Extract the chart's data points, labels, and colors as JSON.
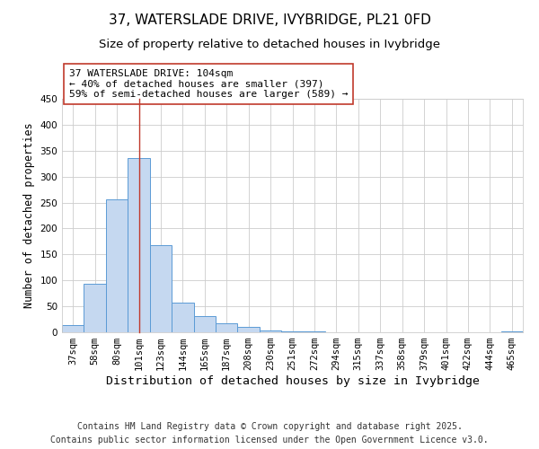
{
  "title": "37, WATERSLADE DRIVE, IVYBRIDGE, PL21 0FD",
  "subtitle": "Size of property relative to detached houses in Ivybridge",
  "xlabel": "Distribution of detached houses by size in Ivybridge",
  "ylabel": "Number of detached properties",
  "bar_color": "#c5d8f0",
  "bar_edge_color": "#5b9bd5",
  "categories": [
    "37sqm",
    "58sqm",
    "80sqm",
    "101sqm",
    "123sqm",
    "144sqm",
    "165sqm",
    "187sqm",
    "208sqm",
    "230sqm",
    "251sqm",
    "272sqm",
    "294sqm",
    "315sqm",
    "337sqm",
    "358sqm",
    "379sqm",
    "401sqm",
    "422sqm",
    "444sqm",
    "465sqm"
  ],
  "values": [
    14,
    94,
    257,
    336,
    168,
    57,
    32,
    18,
    10,
    3,
    2,
    1,
    0,
    0,
    0,
    0,
    0,
    0,
    0,
    0,
    1
  ],
  "ylim": [
    0,
    450
  ],
  "yticks": [
    0,
    50,
    100,
    150,
    200,
    250,
    300,
    350,
    400,
    450
  ],
  "property_line_x": 3,
  "property_line_color": "#c0392b",
  "annotation_line1": "37 WATERSLADE DRIVE: 104sqm",
  "annotation_line2": "← 40% of detached houses are smaller (397)",
  "annotation_line3": "59% of semi-detached houses are larger (589) →",
  "annotation_box_color": "#ffffff",
  "annotation_box_edge_color": "#c0392b",
  "footer_line1": "Contains HM Land Registry data © Crown copyright and database right 2025.",
  "footer_line2": "Contains public sector information licensed under the Open Government Licence v3.0.",
  "background_color": "#ffffff",
  "grid_color": "#cccccc",
  "title_fontsize": 11,
  "subtitle_fontsize": 9.5,
  "xlabel_fontsize": 9.5,
  "ylabel_fontsize": 8.5,
  "tick_fontsize": 7.5,
  "annotation_fontsize": 8,
  "footer_fontsize": 7
}
